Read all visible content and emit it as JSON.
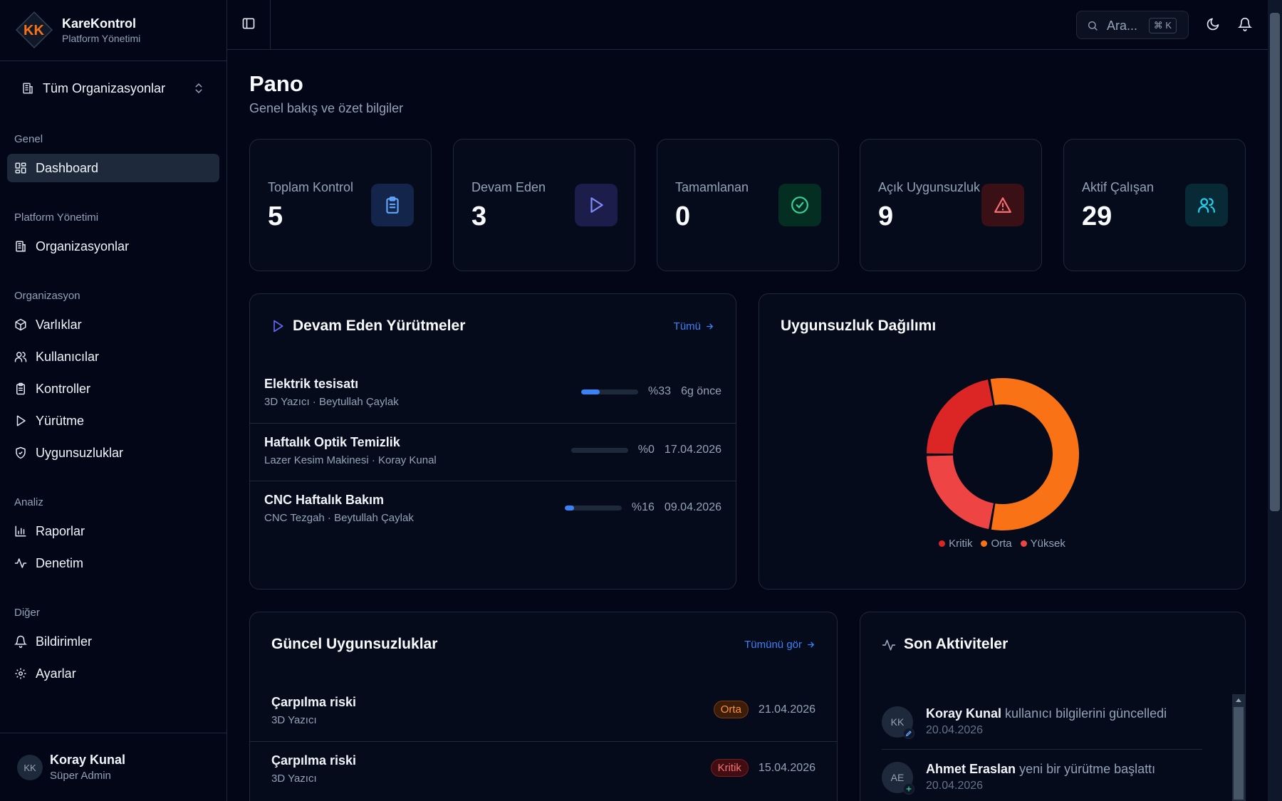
{
  "brand": {
    "title": "KareKontrol",
    "subtitle": "Platform Yönetimi",
    "logo_text": "KK"
  },
  "org_selector": {
    "label": "Tüm Organizasyonlar"
  },
  "sidebar": {
    "groups": [
      {
        "label": "Genel"
      },
      {
        "label": "Platform Yönetimi"
      },
      {
        "label": "Organizasyon"
      },
      {
        "label": "Analiz"
      },
      {
        "label": "Diğer"
      }
    ],
    "items": [
      {
        "label": "Dashboard",
        "icon": "dashboard-icon"
      },
      {
        "label": "Organizasyonlar",
        "icon": "building-icon"
      },
      {
        "label": "Varlıklar",
        "icon": "box-icon"
      },
      {
        "label": "Kullanıcılar",
        "icon": "users-icon"
      },
      {
        "label": "Kontroller",
        "icon": "clipboard-icon"
      },
      {
        "label": "Yürütme",
        "icon": "play-icon"
      },
      {
        "label": "Uygunsuzluklar",
        "icon": "shield-icon"
      },
      {
        "label": "Raporlar",
        "icon": "bar-chart-icon"
      },
      {
        "label": "Denetim",
        "icon": "activity-icon"
      },
      {
        "label": "Bildirimler",
        "icon": "bell-icon"
      },
      {
        "label": "Ayarlar",
        "icon": "gear-icon"
      }
    ]
  },
  "user": {
    "initials": "KK",
    "name": "Koray Kunal",
    "role": "Süper Admin"
  },
  "topbar": {
    "search_placeholder": "Ara...",
    "shortcut": "⌘ K"
  },
  "page": {
    "title": "Pano",
    "subtitle": "Genel bakış ve özet bilgiler"
  },
  "stats": [
    {
      "label": "Toplam Kontrol",
      "value": "5",
      "icon": "clipboard-icon",
      "color": "#3b82f6"
    },
    {
      "label": "Devam Eden",
      "value": "3",
      "icon": "play-icon",
      "color": "#6366f1"
    },
    {
      "label": "Tamamlanan",
      "value": "0",
      "icon": "check-circle-icon",
      "color": "#10b981"
    },
    {
      "label": "Açık Uygunsuzluk",
      "value": "9",
      "icon": "alert-triangle-icon",
      "color": "#ef4444"
    },
    {
      "label": "Aktif Çalışan",
      "value": "29",
      "icon": "users-icon",
      "color": "#06b6d4"
    }
  ],
  "executions": {
    "title": "Devam Eden Yürütmeler",
    "link": "Tümü",
    "rows": [
      {
        "title": "Elektrik tesisatı",
        "sub": "3D Yazıcı · Beytullah Çaylak",
        "progress": 33,
        "progress_label": "%33",
        "date": "6g önce"
      },
      {
        "title": "Haftalık Optik Temizlik",
        "sub": "Lazer Kesim Makinesi · Koray Kunal",
        "progress": 0,
        "progress_label": "%0",
        "date": "17.04.2026"
      },
      {
        "title": "CNC Haftalık Bakım",
        "sub": "CNC Tezgah · Beytullah Çaylak",
        "progress": 16,
        "progress_label": "%16",
        "date": "09.04.2026"
      }
    ]
  },
  "distribution": {
    "title": "Uygunsuzluk Dağılımı",
    "legend": [
      {
        "label": "Kritik",
        "color": "#dc2626"
      },
      {
        "label": "Orta",
        "color": "#f97316"
      },
      {
        "label": "Yüksek",
        "color": "#ef4444"
      }
    ]
  },
  "chart_data": {
    "type": "pie",
    "categories": [
      "Orta",
      "Yüksek",
      "Kritik"
    ],
    "values": [
      5,
      2,
      2
    ],
    "colors": [
      "#f97316",
      "#ef4444",
      "#dc2626"
    ],
    "legend_position": "bottom"
  },
  "nonconformities": {
    "title": "Güncel Uygunsuzluklar",
    "link": "Tümünü gör",
    "rows": [
      {
        "title": "Çarpılma riski",
        "sub": "3D Yazıcı",
        "badge": "Orta",
        "date": "21.04.2026"
      },
      {
        "title": "Çarpılma riski",
        "sub": "3D Yazıcı",
        "badge": "Kritik",
        "date": "15.04.2026"
      }
    ]
  },
  "activities": {
    "title": "Son Aktiviteler",
    "rows": [
      {
        "initials": "KK",
        "name": "Koray Kunal",
        "action": "kullanıcı bilgilerini güncelledi",
        "date": "20.04.2026",
        "badge_icon": "edit-icon"
      },
      {
        "initials": "AE",
        "name": "Ahmet Eraslan",
        "action": "yeni bir yürütme başlattı",
        "date": "20.04.2026",
        "badge_icon": "plus-icon"
      }
    ]
  }
}
